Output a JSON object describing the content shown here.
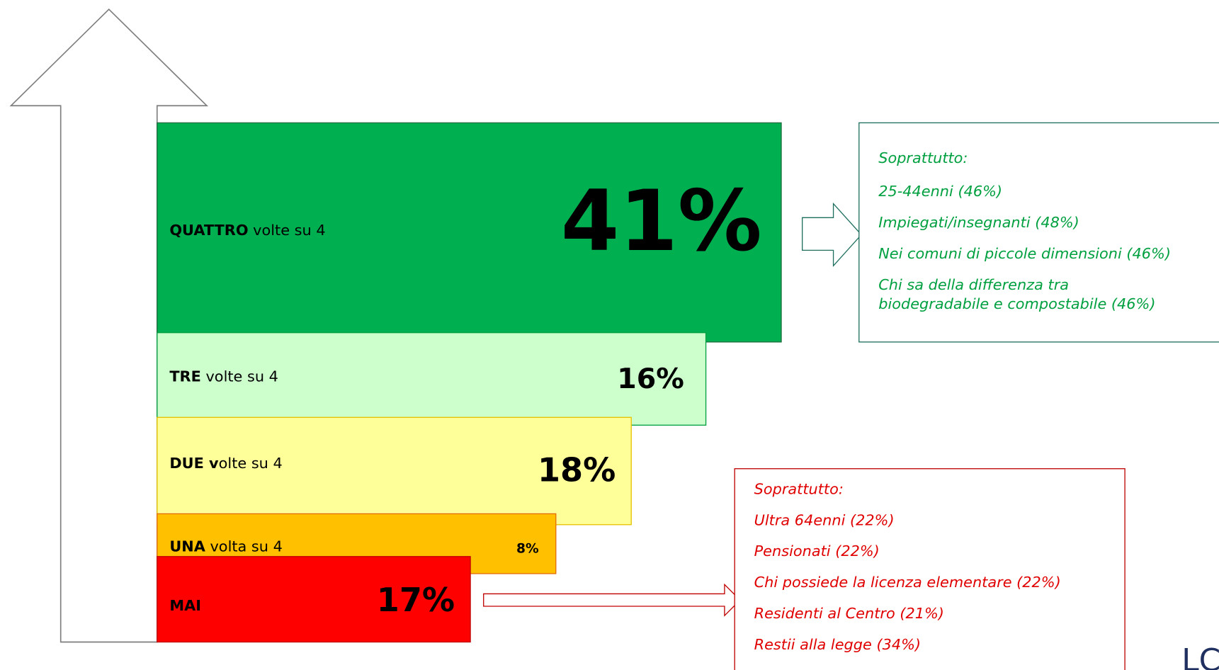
{
  "levels": [
    {
      "label_bold": "QUATTRO",
      "label_rest": " volte su 4",
      "value": "41%"
    },
    {
      "label_bold": "TRE",
      "label_rest": " volte su 4",
      "value": "16%"
    },
    {
      "label_bold": "DUE v",
      "label_rest": "olte su 4",
      "value": "18%"
    },
    {
      "label_bold": "UNA",
      "label_rest": " volta su 4",
      "value": "8%"
    },
    {
      "label_bold": "MAI",
      "label_rest": "",
      "value": "17%"
    }
  ],
  "green_box": {
    "lines": [
      "Soprattutto:",
      "25-44enni (46%)",
      "Impiegati/insegnanti (48%)",
      "Nei comuni di piccole dimensioni (46%)",
      "Chi sa della differenza tra",
      "biodegradabile e compostabile (46%)"
    ]
  },
  "red_box": {
    "lines": [
      "Soprattutto:",
      "Ultra 64enni (22%)",
      "Pensionati (22%)",
      "Chi possiede la licenza elementare (22%)",
      "Residenti al Centro (21%)",
      "Restii alla legge (34%)"
    ]
  },
  "logo": "LC"
}
